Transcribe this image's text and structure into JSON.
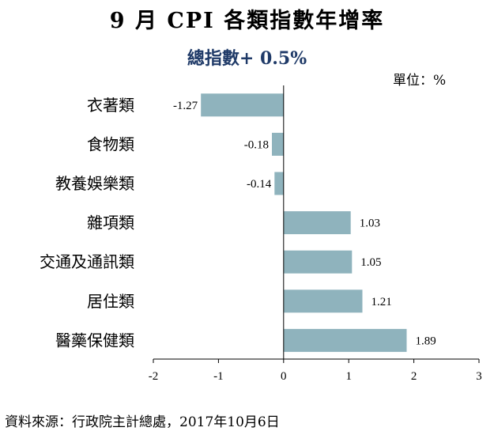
{
  "chart_data": {
    "type": "bar",
    "orientation": "horizontal",
    "title": "9 月 CPI 各類指數年增率",
    "subtitle": "總指數+ 0.5%",
    "unit": "單位：%",
    "categories": [
      "衣著類",
      "食物類",
      "教養娛樂類",
      "雜項類",
      "交通及通訊類",
      "居住類",
      "醫藥保健類"
    ],
    "values": [
      -1.27,
      -0.18,
      -0.14,
      1.03,
      1.05,
      1.21,
      1.89
    ],
    "value_labels": [
      "-1.27",
      "-0.18",
      "-0.14",
      "1.03",
      "1.05",
      "1.21",
      "1.89"
    ],
    "xlim": [
      -2,
      3
    ],
    "xticks": [
      "-2",
      "-1",
      "0",
      "1",
      "2",
      "3"
    ],
    "grid": false,
    "source": "資料來源：行政院主計總處，2017年10月6日",
    "colors": {
      "bar": "#8fb3bd",
      "axis": "#000000",
      "subtitle": "#1f3a68"
    }
  }
}
